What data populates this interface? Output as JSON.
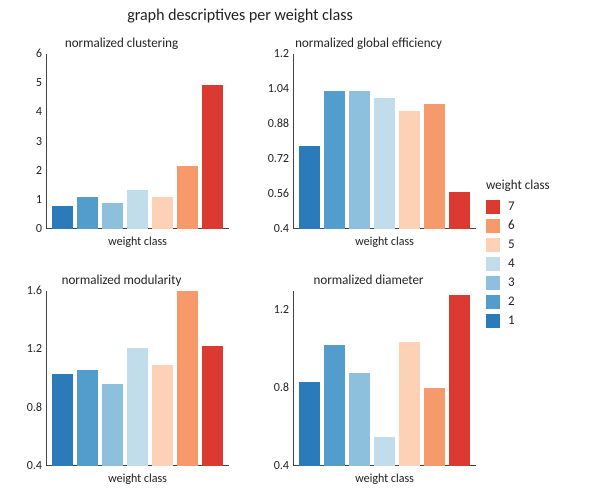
{
  "title": "graph descriptives per weight class",
  "title_fontsize": 16,
  "background_color": "#ffffff",
  "axis_color": "#444444",
  "text_color": "#222222",
  "bar_width": 0.7,
  "colors": {
    "1": "#2b7bba",
    "2": "#539dcc",
    "3": "#8cc0dd",
    "4": "#c1dceb",
    "5": "#fcd1b6",
    "6": "#f79a6b",
    "7": "#da3a2f"
  },
  "categories": [
    "1",
    "2",
    "3",
    "4",
    "5",
    "6",
    "7"
  ],
  "legend": {
    "title": "weight class",
    "order": [
      "7",
      "6",
      "5",
      "4",
      "3",
      "2",
      "1"
    ]
  },
  "panels": [
    {
      "key": "clustering",
      "title": "normalized clustering",
      "xlabel": "weight class",
      "type": "bar",
      "ylim": [
        0,
        6
      ],
      "yticks": [
        0,
        1,
        2,
        3,
        4,
        5,
        6
      ],
      "values": [
        0.78,
        1.1,
        0.9,
        1.35,
        1.1,
        2.15,
        4.95
      ]
    },
    {
      "key": "global_eff",
      "title": "normalized global efficiency",
      "xlabel": "weight class",
      "type": "bar",
      "ylim": [
        0.4,
        1.2
      ],
      "yticks": [
        0.4,
        0.56,
        0.72,
        0.88,
        1.04,
        1.2
      ],
      "values": [
        0.78,
        1.03,
        1.03,
        1.0,
        0.94,
        0.97,
        0.57
      ]
    },
    {
      "key": "modularity",
      "title": "normalized modularity",
      "xlabel": "weight class",
      "type": "bar",
      "ylim": [
        0.4,
        1.6
      ],
      "yticks": [
        0.4,
        0.8,
        1.2,
        1.6
      ],
      "values": [
        1.03,
        1.06,
        0.96,
        1.21,
        1.09,
        1.6,
        1.22
      ]
    },
    {
      "key": "diameter",
      "title": "normalized diameter",
      "xlabel": "weight class",
      "type": "bar",
      "ylim": [
        0.4,
        1.3
      ],
      "yticks": [
        0.4,
        0.8,
        1.2
      ],
      "values": [
        0.83,
        1.02,
        0.88,
        0.55,
        1.04,
        0.8,
        1.28
      ]
    }
  ]
}
